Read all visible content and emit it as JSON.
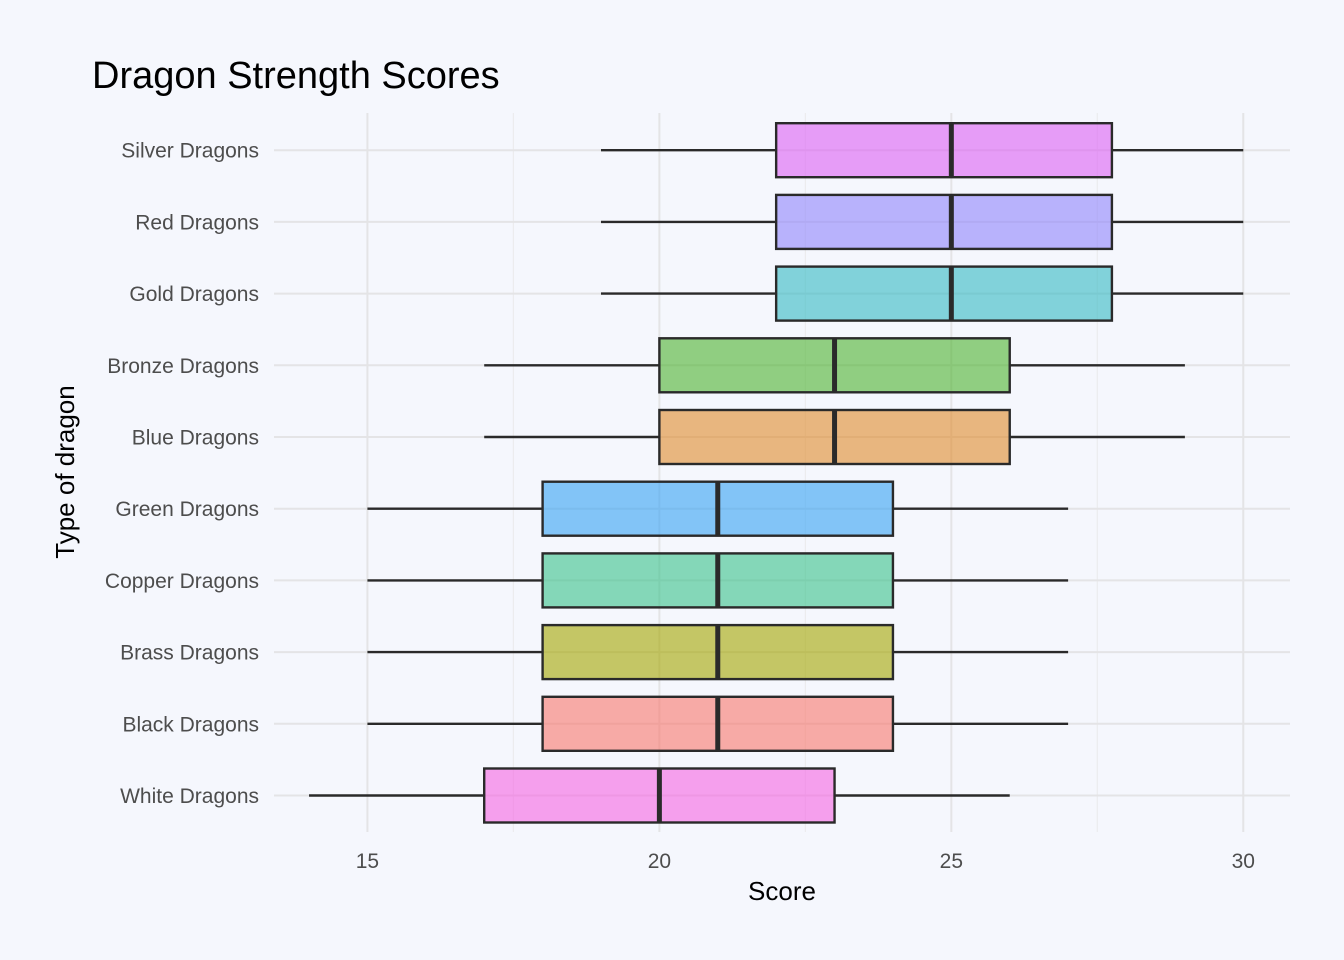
{
  "chart_data": {
    "type": "boxplot",
    "orientation": "horizontal",
    "title": "Dragon Strength Scores",
    "xlabel": "Score",
    "ylabel": "Type of dragon",
    "xlim": [
      13.4,
      30.8
    ],
    "xticks": [
      15,
      20,
      25,
      30
    ],
    "grid": true,
    "legend": "none",
    "categories": [
      "White Dragons",
      "Black Dragons",
      "Brass Dragons",
      "Copper Dragons",
      "Green Dragons",
      "Blue Dragons",
      "Bronze Dragons",
      "Gold Dragons",
      "Red Dragons",
      "Silver Dragons"
    ],
    "boxes": [
      {
        "category": "White Dragons",
        "min": 14,
        "q1": 17,
        "median": 20,
        "q3": 23,
        "max": 26,
        "color": "#f564e3"
      },
      {
        "category": "Black Dragons",
        "min": 15,
        "q1": 18,
        "median": 21,
        "q3": 24,
        "max": 27,
        "color": "#f8766d"
      },
      {
        "category": "Brass Dragons",
        "min": 15,
        "q1": 18,
        "median": 21,
        "q3": 24,
        "max": 27,
        "color": "#a3a500"
      },
      {
        "category": "Copper Dragons",
        "min": 15,
        "q1": 18,
        "median": 21,
        "q3": 24,
        "max": 27,
        "color": "#39c28a"
      },
      {
        "category": "Green Dragons",
        "min": 15,
        "q1": 18,
        "median": 21,
        "q3": 24,
        "max": 27,
        "color": "#35a2f4"
      },
      {
        "category": "Blue Dragons",
        "min": 17,
        "q1": 20,
        "median": 23,
        "q3": 26,
        "max": 29,
        "color": "#e08b2b"
      },
      {
        "category": "Bronze Dragons",
        "min": 17,
        "q1": 20,
        "median": 23,
        "q3": 26,
        "max": 29,
        "color": "#4cb22e"
      },
      {
        "category": "Gold Dragons",
        "min": 19,
        "q1": 22,
        "median": 25,
        "q3": 27.75,
        "max": 30,
        "color": "#34b9c3"
      },
      {
        "category": "Red Dragons",
        "min": 19,
        "q1": 22,
        "median": 25,
        "q3": 27.75,
        "max": 30,
        "color": "#8f84fc"
      },
      {
        "category": "Silver Dragons",
        "min": 19,
        "q1": 22,
        "median": 25,
        "q3": 27.75,
        "max": 30,
        "color": "#dc5ff4"
      }
    ]
  }
}
